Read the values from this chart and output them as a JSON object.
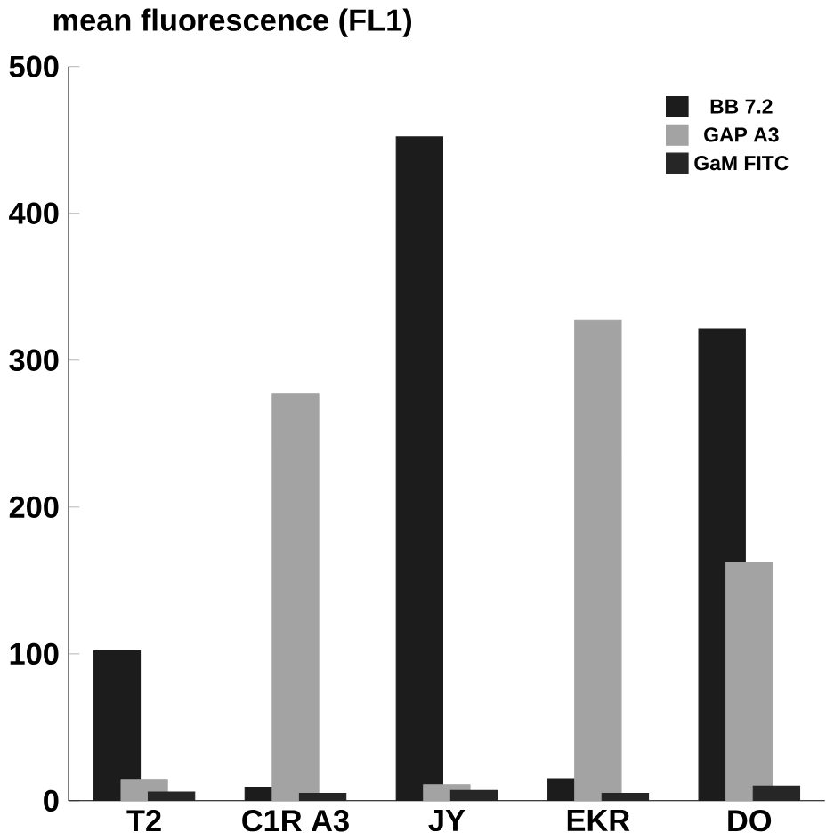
{
  "chart_data": {
    "type": "bar",
    "title": "mean fluorescence (FL1)",
    "categories": [
      "T2",
      "C1R A3",
      "JY",
      "EKR",
      "DO"
    ],
    "series": [
      {
        "name": "BB 7.2",
        "color": "#1c1c1c",
        "values": [
          102,
          9,
          452,
          15,
          321
        ]
      },
      {
        "name": "GAP A3",
        "color": "#a3a3a3",
        "values": [
          14,
          277,
          11,
          327,
          162
        ]
      },
      {
        "name": "GaM FITC",
        "color": "#262626",
        "values": [
          6,
          5,
          7,
          5,
          10
        ]
      }
    ],
    "ylim": [
      0,
      500
    ],
    "yticks": [
      0,
      100,
      200,
      300,
      400,
      500
    ],
    "legend": "top right"
  }
}
